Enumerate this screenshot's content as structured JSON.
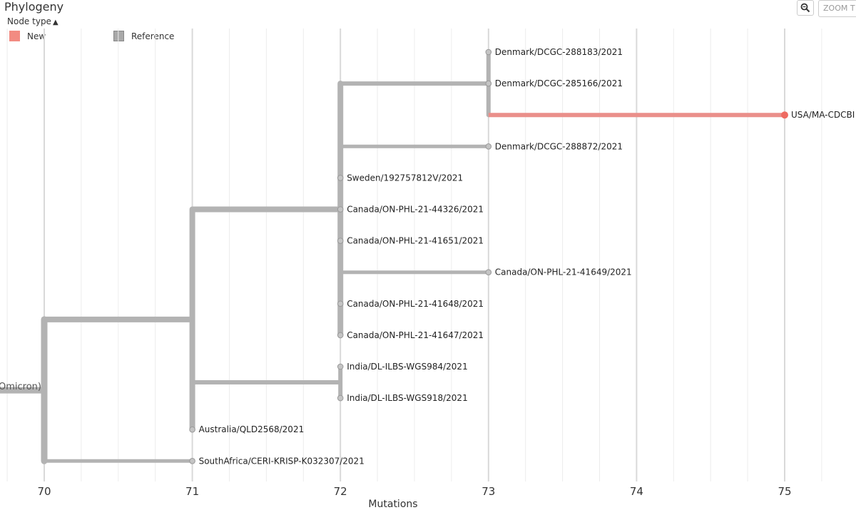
{
  "header": {
    "title": "Phylogeny",
    "node_type_label": "Node type",
    "zoom_placeholder": "ZOOM T"
  },
  "legend": [
    {
      "label": "New",
      "color": "#f28b82"
    },
    {
      "label": "Reference",
      "color": "#a9a9a9"
    }
  ],
  "colors": {
    "branch": "#b3b3b3",
    "new_branch": "#ea8f8a",
    "new_node": "#ee6b62",
    "node": "#c4c4c4",
    "grid": "#e3e3e3"
  },
  "chart_data": {
    "type": "tree",
    "xlabel": "Mutations",
    "x_ticks": [
      70,
      71,
      72,
      73,
      74,
      75
    ],
    "xlim": [
      69.75,
      75.5
    ],
    "root_label": "Omicron)",
    "tips": [
      {
        "label": "Denmark/DCGC-288183/2021",
        "x": 73,
        "type": "Reference"
      },
      {
        "label": "Denmark/DCGC-285166/2021",
        "x": 73,
        "type": "Reference"
      },
      {
        "label": "USA/MA-CDCBI",
        "x": 75,
        "type": "New"
      },
      {
        "label": "Denmark/DCGC-288872/2021",
        "x": 73,
        "type": "Reference"
      },
      {
        "label": "Sweden/192757812V/2021",
        "x": 72,
        "type": "Reference"
      },
      {
        "label": "Canada/ON-PHL-21-44326/2021",
        "x": 72,
        "type": "Reference"
      },
      {
        "label": "Canada/ON-PHL-21-41651/2021",
        "x": 72,
        "type": "Reference"
      },
      {
        "label": "Canada/ON-PHL-21-41649/2021",
        "x": 73,
        "type": "Reference"
      },
      {
        "label": "Canada/ON-PHL-21-41648/2021",
        "x": 72,
        "type": "Reference"
      },
      {
        "label": "Canada/ON-PHL-21-41647/2021",
        "x": 72,
        "type": "Reference"
      },
      {
        "label": "India/DL-ILBS-WGS984/2021",
        "x": 72,
        "type": "Reference"
      },
      {
        "label": "India/DL-ILBS-WGS918/2021",
        "x": 72,
        "type": "Reference"
      },
      {
        "label": "Australia/QLD2568/2021",
        "x": 71,
        "type": "Reference"
      },
      {
        "label": "SouthAfrica/CERI-KRISP-K032307/2021",
        "x": 71,
        "type": "Reference"
      }
    ],
    "internal_nodes": [
      {
        "id": "root",
        "x": 70,
        "children": [
          "n71",
          "tip13"
        ]
      },
      {
        "id": "n71",
        "x": 71,
        "children": [
          "n72a",
          "n72b",
          "tip12"
        ]
      },
      {
        "id": "n72a",
        "x": 72,
        "children": [
          "n73",
          "tip3",
          "tip4",
          "tip5",
          "tip6",
          "tip7",
          "tip8",
          "tip9"
        ]
      },
      {
        "id": "n73",
        "x": 73,
        "children": [
          "tip0",
          "tip1",
          "tip2"
        ]
      },
      {
        "id": "n72b",
        "x": 72,
        "children": [
          "tip10",
          "tip11"
        ]
      }
    ]
  }
}
